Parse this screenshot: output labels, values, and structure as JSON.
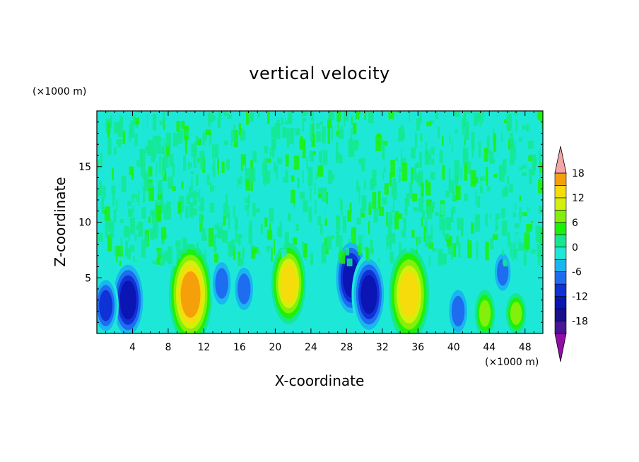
{
  "chart_data": {
    "type": "heatmap",
    "title": "vertical velocity",
    "xlabel": "X-coordinate",
    "ylabel": "Z-coordinate",
    "x_unit": "(×1000 m)",
    "y_unit": "(×1000 m)",
    "xlim": [
      0,
      50
    ],
    "ylim": [
      0,
      20
    ],
    "x_ticks": [
      4,
      8,
      12,
      16,
      20,
      24,
      28,
      32,
      36,
      40,
      44,
      48
    ],
    "y_ticks": [
      5,
      10,
      15
    ],
    "colorbar": {
      "levels": [
        -21,
        -18,
        -15,
        -12,
        -9,
        -6,
        -3,
        0,
        3,
        6,
        9,
        12,
        15,
        18
      ],
      "tick_labels": [
        18,
        12,
        6,
        0,
        -6,
        -12,
        -18
      ],
      "colors": [
        "#8f0ea6",
        "#4a1496",
        "#1a0f8c",
        "#0b15b4",
        "#0f32d6",
        "#1e6cf0",
        "#19b6f0",
        "#1de8d8",
        "#15e890",
        "#1ff00a",
        "#82f00a",
        "#d2f00a",
        "#f5dc0a",
        "#f5a00a",
        "#f0780a",
        "#f04614",
        "#e62814",
        "#f4a6a6"
      ]
    },
    "features": [
      {
        "x": 3.5,
        "z": 3.0,
        "value": -12
      },
      {
        "x": 1.0,
        "z": 2.5,
        "value": -9
      },
      {
        "x": 10.5,
        "z": 3.5,
        "value": 15
      },
      {
        "x": 14.0,
        "z": 4.5,
        "value": -8
      },
      {
        "x": 16.5,
        "z": 4.0,
        "value": -8
      },
      {
        "x": 21.5,
        "z": 4.5,
        "value": 12
      },
      {
        "x": 28.5,
        "z": 5.0,
        "value": -12
      },
      {
        "x": 30.5,
        "z": 3.5,
        "value": -12
      },
      {
        "x": 35.0,
        "z": 3.5,
        "value": 14
      },
      {
        "x": 40.5,
        "z": 2.0,
        "value": -8
      },
      {
        "x": 43.5,
        "z": 1.8,
        "value": 7
      },
      {
        "x": 47.0,
        "z": 1.8,
        "value": 6
      },
      {
        "x": 45.5,
        "z": 5.5,
        "value": -7
      }
    ]
  }
}
